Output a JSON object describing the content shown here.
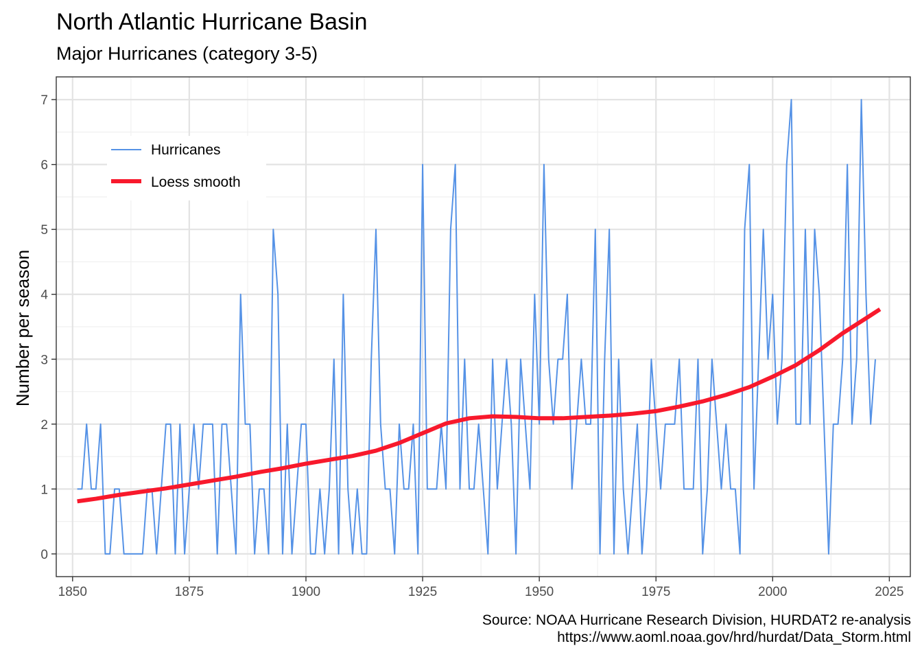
{
  "chart_data": {
    "type": "line",
    "title": "North Atlantic Hurricane Basin",
    "subtitle": "Major Hurricanes (category 3-5)",
    "xlabel": "",
    "ylabel": "Number per season",
    "xlim": [
      1846.5,
      2029.5
    ],
    "ylim": [
      -0.35,
      7.35
    ],
    "x_ticks": [
      1850,
      1875,
      1900,
      1925,
      1950,
      1975,
      2000,
      2025
    ],
    "y_ticks": [
      0,
      1,
      2,
      3,
      4,
      5,
      6,
      7
    ],
    "grid": true,
    "legend_position": "top-left",
    "caption_line1": "Source: NOAA Hurricane Research Division, HURDAT2 re-analysis",
    "caption_line2": "https://www.aoml.noaa.gov/hrd/hurdat/Data_Storm.html",
    "series": [
      {
        "name": "Hurricanes",
        "color": "#5592e6",
        "x_start": 1851,
        "values": [
          1,
          1,
          2,
          1,
          1,
          2,
          0,
          0,
          1,
          1,
          0,
          0,
          0,
          0,
          0,
          1,
          1,
          0,
          1,
          2,
          2,
          0,
          2,
          0,
          1,
          2,
          1,
          2,
          2,
          2,
          0,
          2,
          2,
          1,
          0,
          4,
          2,
          2,
          0,
          1,
          1,
          0,
          5,
          4,
          0,
          2,
          0,
          1,
          2,
          2,
          0,
          0,
          1,
          0,
          1,
          3,
          0,
          4,
          1,
          0,
          1,
          0,
          0,
          3,
          5,
          2,
          1,
          1,
          0,
          2,
          1,
          1,
          2,
          0,
          6,
          1,
          1,
          1,
          2,
          1,
          5,
          6,
          1,
          3,
          1,
          1,
          2,
          1,
          0,
          3,
          1,
          2,
          3,
          2,
          0,
          3,
          2,
          1,
          4,
          2,
          6,
          3,
          2,
          3,
          3,
          4,
          1,
          2,
          3,
          2,
          2,
          5,
          0,
          3,
          5,
          0,
          3,
          1,
          0,
          1,
          2,
          0,
          1,
          3,
          2,
          1,
          2,
          2,
          2,
          3,
          1,
          1,
          1,
          3,
          0,
          1,
          3,
          2,
          1,
          2,
          1,
          1,
          0,
          5,
          6,
          1,
          3,
          5,
          3,
          4,
          2,
          3,
          6,
          7,
          2,
          2,
          5,
          2,
          5,
          4,
          2,
          0,
          2,
          2,
          3,
          6,
          2,
          3,
          7,
          4,
          2,
          3
        ]
      },
      {
        "name": "Loess smooth",
        "color": "#f8192c",
        "points": [
          [
            1851,
            0.81
          ],
          [
            1855,
            0.85
          ],
          [
            1860,
            0.91
          ],
          [
            1865,
            0.96
          ],
          [
            1870,
            1.01
          ],
          [
            1875,
            1.07
          ],
          [
            1880,
            1.13
          ],
          [
            1885,
            1.19
          ],
          [
            1890,
            1.26
          ],
          [
            1895,
            1.32
          ],
          [
            1900,
            1.39
          ],
          [
            1905,
            1.45
          ],
          [
            1910,
            1.51
          ],
          [
            1915,
            1.59
          ],
          [
            1920,
            1.71
          ],
          [
            1925,
            1.86
          ],
          [
            1930,
            2.01
          ],
          [
            1935,
            2.09
          ],
          [
            1940,
            2.12
          ],
          [
            1945,
            2.11
          ],
          [
            1950,
            2.09
          ],
          [
            1955,
            2.09
          ],
          [
            1960,
            2.11
          ],
          [
            1965,
            2.13
          ],
          [
            1970,
            2.16
          ],
          [
            1975,
            2.2
          ],
          [
            1980,
            2.27
          ],
          [
            1985,
            2.35
          ],
          [
            1990,
            2.45
          ],
          [
            1995,
            2.57
          ],
          [
            2000,
            2.73
          ],
          [
            2005,
            2.91
          ],
          [
            2010,
            3.14
          ],
          [
            2015,
            3.4
          ],
          [
            2020,
            3.63
          ],
          [
            2023,
            3.77
          ]
        ]
      }
    ]
  }
}
